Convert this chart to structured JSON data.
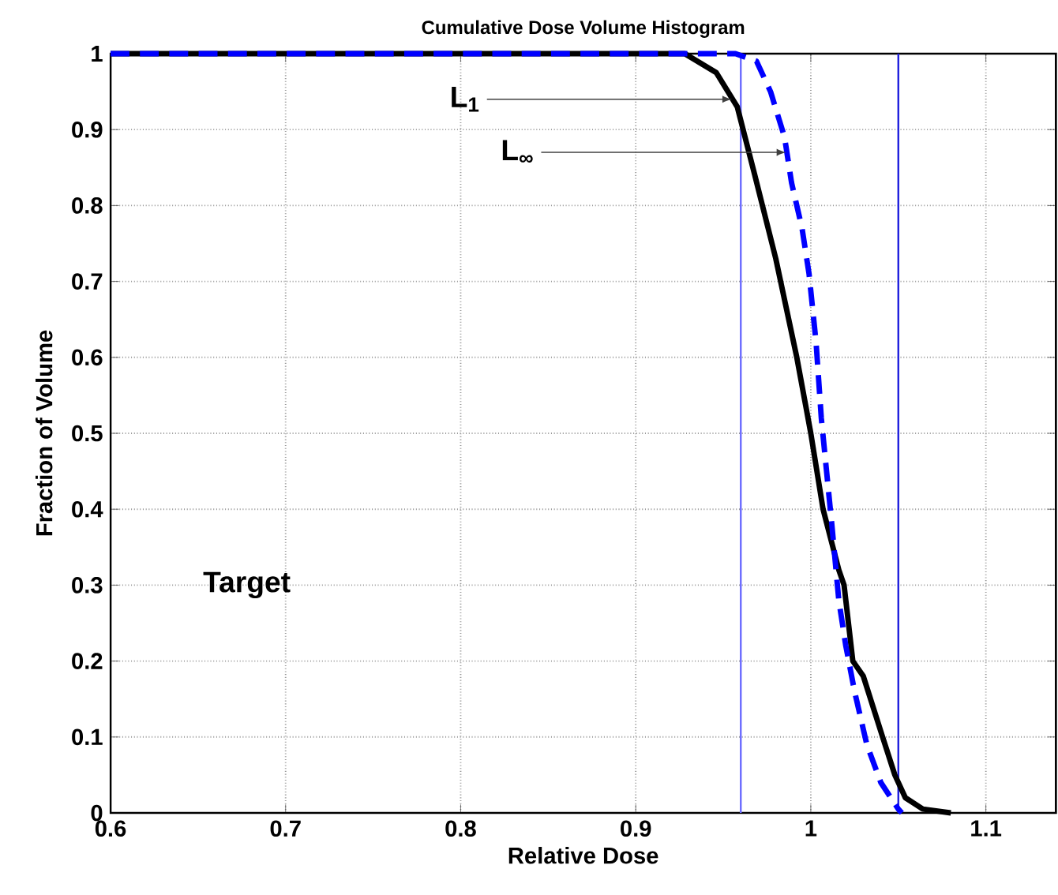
{
  "chart_data": {
    "type": "line",
    "title": "Cumulative Dose Volume Histogram",
    "xlabel": "Relative Dose",
    "ylabel": "Fraction of Volume",
    "xlim": [
      0.6,
      1.14
    ],
    "ylim": [
      0,
      1
    ],
    "xticks": [
      0.6,
      0.7,
      0.8,
      0.9,
      1,
      1.1
    ],
    "yticks": [
      0,
      0.1,
      0.2,
      0.3,
      0.4,
      0.5,
      0.6,
      0.7,
      0.8,
      0.9,
      1
    ],
    "grid": true,
    "marker": "none",
    "series": [
      {
        "color": "#000000",
        "line_style": "solid",
        "x": [
          0.6,
          0.9,
          0.928,
          0.946,
          0.958,
          0.968,
          0.98,
          0.992,
          1.0,
          1.007,
          1.016,
          1.019,
          1.024,
          1.03,
          1.041,
          1.048,
          1.054,
          1.064,
          1.08
        ],
        "values": [
          1,
          1,
          1,
          0.975,
          0.93,
          0.84,
          0.73,
          0.6,
          0.5,
          0.4,
          0.32,
          0.3,
          0.2,
          0.18,
          0.1,
          0.05,
          0.02,
          0.005,
          0
        ]
      },
      {
        "color": "#0000ff",
        "line_style": "dashed",
        "x": [
          0.6,
          0.9,
          0.957,
          0.969,
          0.977,
          0.985,
          0.989,
          0.995,
          0.999,
          1.003,
          1.006,
          1.009,
          1.012,
          1.016,
          1.02,
          1.025,
          1.032,
          1.04,
          1.05,
          1.052
        ],
        "values": [
          1,
          1,
          1,
          0.99,
          0.95,
          0.89,
          0.83,
          0.77,
          0.71,
          0.62,
          0.52,
          0.45,
          0.38,
          0.28,
          0.22,
          0.16,
          0.09,
          0.04,
          0.005,
          0
        ]
      }
    ],
    "ref_lines": [
      {
        "axis": "x",
        "value": 0.96,
        "color": "#6b6bff"
      },
      {
        "axis": "x",
        "value": 1.05,
        "color": "#2020dd"
      }
    ],
    "annotations": [
      {
        "text": "L$_{1}$",
        "x": 0.955,
        "y": 0.94
      },
      {
        "text": "L$_{∞}$",
        "x": 0.986,
        "y": 0.87
      },
      "Target"
    ]
  }
}
